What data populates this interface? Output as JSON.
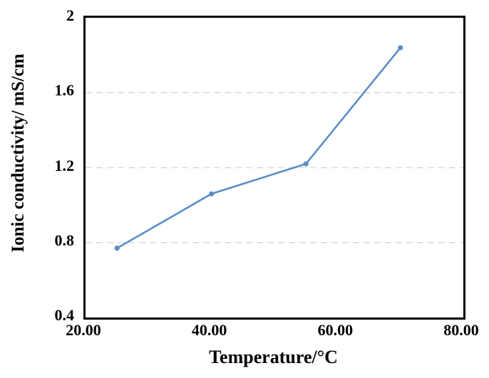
{
  "chart_data": {
    "type": "line",
    "title": "",
    "xlabel": "Temperature/°C",
    "ylabel": "Ionic conductivity/ mS/cm",
    "x": [
      25,
      40,
      55,
      70
    ],
    "series": [
      {
        "name": "Ionic conductivity",
        "values": [
          0.77,
          1.06,
          1.22,
          1.84
        ]
      }
    ],
    "xlim": [
      20,
      80
    ],
    "ylim": [
      0.4,
      2.0
    ],
    "x_ticks": [
      "20.00",
      "40.00",
      "60.00",
      "80.00"
    ],
    "x_tick_values": [
      20,
      40,
      60,
      80
    ],
    "y_ticks": [
      "0.4",
      "0.8",
      "1.2",
      "1.6",
      "2"
    ],
    "y_tick_values": [
      0.4,
      0.8,
      1.2,
      1.6,
      2
    ],
    "gridline_y_values": [
      0.8,
      1.2,
      1.6
    ],
    "grid_style": "dashed",
    "legend": "none",
    "line_color": "#5b8ec6",
    "marker": "circle",
    "grid_color": "#d9d9d9",
    "axis_color": "#000000",
    "background_color": "#ffffff"
  }
}
